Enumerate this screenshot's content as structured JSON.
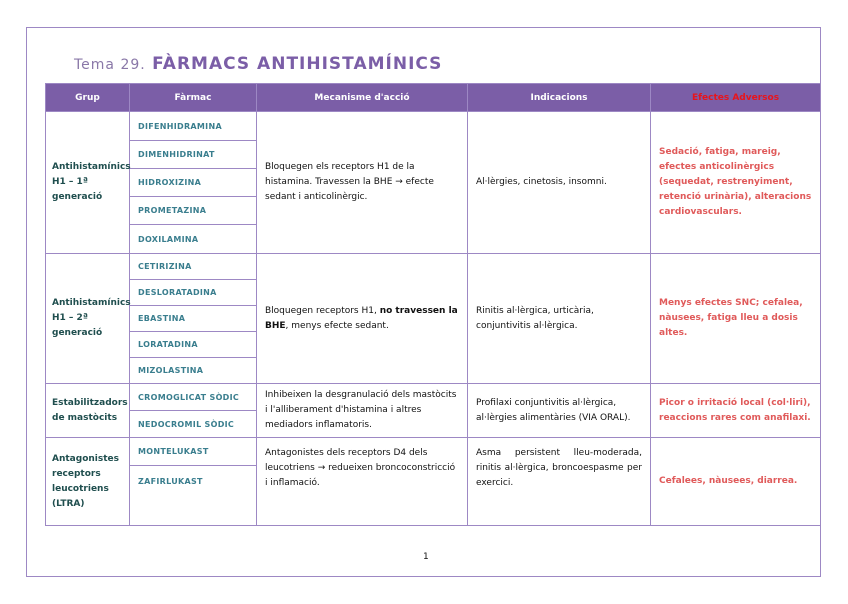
{
  "title": {
    "prefix": "Tema 29.",
    "main": "FÀRMACS ANTIHISTAMÍNICS"
  },
  "headers": [
    "Grup",
    "Fàrmac",
    "Mecanisme d'acció",
    "Indicacions",
    "Efectes Adversos"
  ],
  "colors": {
    "header_bg": "#7b5ea7",
    "border": "#9d88c4",
    "drug": "#3a7e8e",
    "group": "#1f4e4e",
    "adverse": "#e05a5a",
    "adverse_header": "#e8141c"
  },
  "rows": [
    {
      "group": "Antihistamínics H1 – 1ª generació",
      "drugs": [
        "DIFENHIDRAMINA",
        "DIMENHIDRINAT",
        "HIDROXIZINA",
        "PROMETAZINA",
        "DOXILAMINA"
      ],
      "mechanism": "Bloquegen els receptors H1 de la histamina. Travessen la BHE → efecte sedant i anticolinèrgic.",
      "indications": "Al·lèrgies, cinetosis, insomni.",
      "adverse": "Sedació, fatiga, mareig, efectes anticolinèrgics (sequedat, restrenyiment, retenció urinària), alteracions cardiovasculars."
    },
    {
      "group": "Antihistamínics H1 – 2ª generació",
      "drugs": [
        "CETIRIZINA",
        "DESLORATADINA",
        "EBASTINA",
        "LORATADINA",
        "MIZOLASTINA"
      ],
      "mechanism_a": "Bloquegen receptors H1, ",
      "mechanism_b": "no travessen la BHE",
      "mechanism_c": ", menys efecte sedant.",
      "indications": "Rinitis al·lèrgica, urticària, conjuntivitis al·lèrgica.",
      "adverse": "Menys efectes SNC; cefalea, nàusees, fatiga lleu a dosis altes."
    },
    {
      "group": "Estabilitzadors de mastòcits",
      "drugs": [
        "CROMOGLICAT SÒDIC",
        "NEDOCROMIL SÒDIC"
      ],
      "mechanism": "Inhibeixen la desgranulació dels mastòcits i l'alliberament d'histamina i altres mediadors inflamatoris.",
      "indications": "Profilaxi conjuntivitis al·lèrgica, al·lèrgies alimentàries (VIA ORAL).",
      "adverse": "Picor o irritació local (col·liri), reaccions rares com anafilaxi."
    },
    {
      "group": "Antagonistes receptors leucotriens (LTRA)",
      "drugs": [
        "MONTELUKAST",
        "ZAFIRLUKAST"
      ],
      "mechanism": "Antagonistes dels receptors D4 dels leucotriens → redueixen broncoconstricció i inflamació.",
      "indications": "Asma persistent lleu-moderada, rinitis al·lèrgica, broncoespasme per exercici.",
      "adverse": "Cefalees, nàusees, diarrea."
    }
  ],
  "page_number": "1"
}
